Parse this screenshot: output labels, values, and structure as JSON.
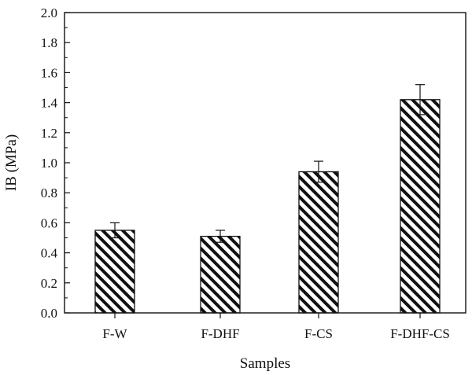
{
  "chart_data": {
    "type": "bar",
    "categories": [
      "F-W",
      "F-DHF",
      "F-CS",
      "F-DHF-CS"
    ],
    "values": [
      0.55,
      0.51,
      0.94,
      1.42
    ],
    "errors": [
      0.05,
      0.04,
      0.07,
      0.1
    ],
    "xlabel": "Samples",
    "ylabel": "IB (MPa)",
    "ylim": [
      0,
      2.0
    ],
    "yticks": [
      "0.0",
      "0.2",
      "0.4",
      "0.6",
      "0.8",
      "1.0",
      "1.2",
      "1.4",
      "1.6",
      "1.8",
      "2.0"
    ],
    "bar_pattern": "diagonal-hatch",
    "grid": false,
    "legend": "none"
  }
}
